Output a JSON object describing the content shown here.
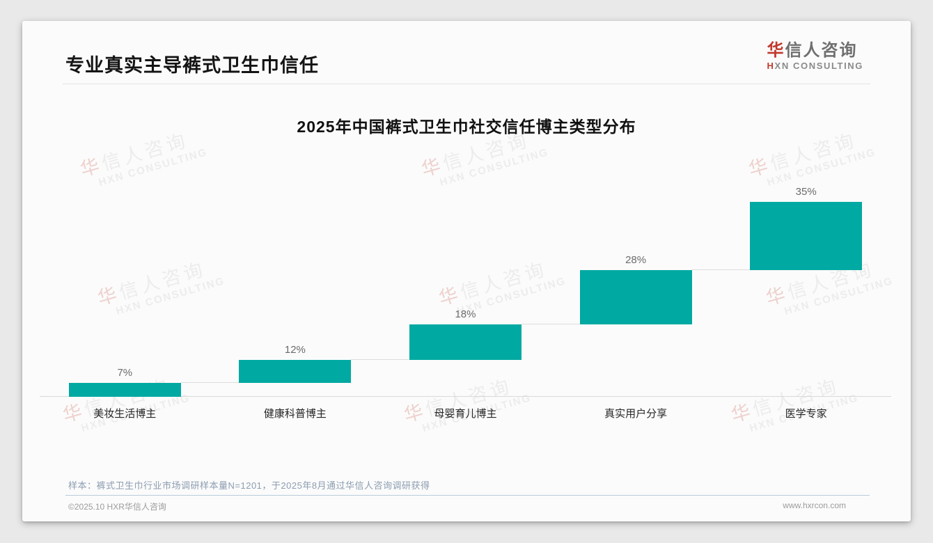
{
  "header": {
    "title": "专业真实主导裤式卫生巾信任",
    "logo": {
      "cn_first": "华",
      "cn_rest": "信人咨询",
      "en_first": "H",
      "en_rest": "XN CONSULTING"
    }
  },
  "watermark": {
    "cn_first": "华",
    "cn_rest": "信人咨询",
    "en": "HXN CONSULTING"
  },
  "chart_data": {
    "type": "bar",
    "subtype": "waterfall",
    "title": "2025年中国裤式卫生巾社交信任博主类型分布",
    "categories": [
      "美妆生活博主",
      "健康科普博主",
      "母婴育儿博主",
      "真实用户分享",
      "医学专家"
    ],
    "values": [
      7,
      12,
      18,
      28,
      35
    ],
    "value_labels": [
      "7%",
      "12%",
      "18%",
      "28%",
      "35%"
    ],
    "cumulative_starts": [
      0,
      7,
      19,
      37,
      65
    ],
    "total": 100,
    "xlabel": "",
    "ylabel": "",
    "ylim": [
      0,
      100
    ],
    "grid": false,
    "legend": false,
    "bar_color": "#00A9A1",
    "connector_color": "#dddddd"
  },
  "footnote": "样本：裤式卫生巾行业市场调研样本量N=1201，于2025年8月通过华信人咨询调研获得",
  "footer": {
    "left": "©2025.10 HXR华信人咨询",
    "right": "www.hxrcon.com"
  },
  "colors": {
    "bar": "#00A9A1",
    "brand_red": "#C0392B"
  }
}
